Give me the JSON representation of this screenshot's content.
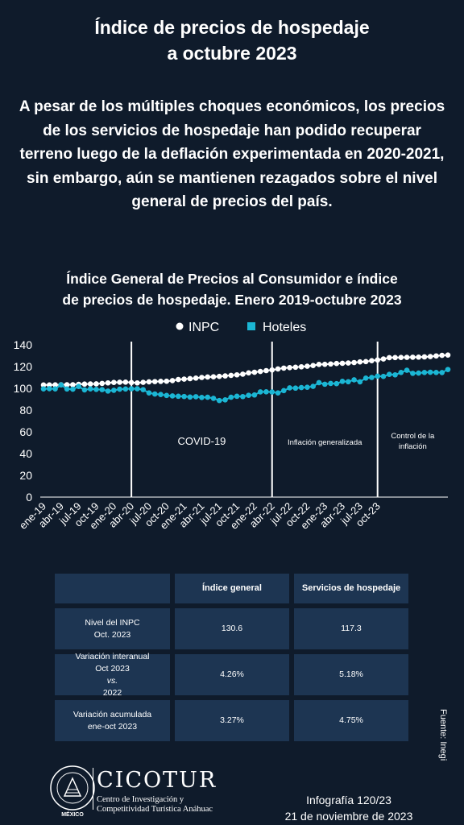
{
  "header": {
    "title_line1": "Índice de precios de hospedaje",
    "title_line2": "a octubre 2023",
    "intro": "A pesar de los múltiples choques económicos, los precios de los servicios de hospedaje han podido recuperar terreno luego de la deflación experimentada en 2020-2021, sin embargo, aún se mantienen rezagados sobre el nivel general de precios del país."
  },
  "chart_title_line1": "Índice General de Precios al Consumidor e índice",
  "chart_title_line2": "de precios de hospedaje. Enero 2019-octubre 2023",
  "chart_data": {
    "type": "line",
    "x_tick_labels": [
      "ene-19",
      "abr-19",
      "jul-19",
      "oct-19",
      "ene-20",
      "abr-20",
      "jul-20",
      "oct-20",
      "ene-21",
      "abr-21",
      "jul-21",
      "oct-21",
      "ene-22",
      "abr-22",
      "jul-22",
      "oct-22",
      "ene-23",
      "abr-23",
      "jul-23",
      "oct-23"
    ],
    "ylim": [
      0,
      140
    ],
    "y_ticks": [
      0,
      20,
      40,
      60,
      80,
      100,
      120,
      140
    ],
    "legend_position": "top",
    "series": [
      {
        "name": "INPC",
        "color": "#ffffff",
        "values": [
          103.1,
          103.1,
          103.2,
          103.3,
          103.3,
          103.3,
          103.7,
          103.9,
          104.0,
          104.1,
          104.5,
          105.0,
          105.4,
          105.6,
          105.7,
          105.3,
          105.0,
          105.5,
          106.0,
          106.2,
          106.4,
          106.5,
          107.1,
          108.1,
          108.5,
          108.9,
          109.4,
          110.0,
          110.4,
          110.6,
          111.0,
          111.4,
          111.9,
          112.4,
          113.0,
          114.2,
          114.8,
          115.5,
          116.3,
          116.9,
          117.8,
          118.6,
          119.0,
          119.4,
          119.8,
          120.3,
          121.0,
          122.0,
          122.1,
          122.4,
          122.8,
          123.0,
          123.3,
          123.7,
          124.3,
          124.6,
          125.4,
          126.1,
          127.0,
          128.2,
          128.3,
          128.4,
          128.5,
          128.6,
          128.7,
          128.9,
          129.2,
          129.8,
          130.3,
          130.6
        ]
      },
      {
        "name": "Hoteles",
        "color": "#1bb6d4",
        "values": [
          99.5,
          99.7,
          99.5,
          103.2,
          99.4,
          99.2,
          101.7,
          98.6,
          99.5,
          99.0,
          98.8,
          97.5,
          98.2,
          99.2,
          99.4,
          99.6,
          99.6,
          98.8,
          95.8,
          94.8,
          94.3,
          93.5,
          93.0,
          92.7,
          92.5,
          92.0,
          92.3,
          91.6,
          91.8,
          90.8,
          88.8,
          89.4,
          91.8,
          92.7,
          92.4,
          93.6,
          93.9,
          96.7,
          96.8,
          96.6,
          95.8,
          97.9,
          100.4,
          100.2,
          100.7,
          101.0,
          101.8,
          105.2,
          103.8,
          104.5,
          104.3,
          106.4,
          106.1,
          107.8,
          106.0,
          109.4,
          110.0,
          111.2,
          111.0,
          112.8,
          112.4,
          114.6,
          116.6,
          113.8,
          114.0,
          114.6,
          114.8,
          114.6,
          114.5,
          117.3
        ]
      }
    ],
    "annotations": [
      "COVID-19",
      "Inflación generalizada",
      "Control de la",
      "inflación"
    ]
  },
  "table": {
    "headers": [
      "",
      "Índice general",
      "Servicios de hospedaje"
    ],
    "rows": [
      {
        "label1": "Nivel del INPC",
        "label2": "Oct. 2023",
        "general": "130.6",
        "hospedaje": "117.3"
      },
      {
        "label1": "Variación interanual",
        "label2_a": "Oct 2023 ",
        "label2_em": "vs.",
        "label2_b": " 2022",
        "general": "4.26%",
        "hospedaje": "5.18%"
      },
      {
        "label1": "Variación acumulada",
        "label2": "ene-oct 2023",
        "general": "3.27%",
        "hospedaje": "4.75%"
      }
    ]
  },
  "source": "Fuente: Inegi",
  "footer": {
    "brand": "CICOTUR",
    "brand_sub1": "Centro de Investigación y",
    "brand_sub2": "Competitividad Turística Anáhuac",
    "mexico": "MÉXICO",
    "info_line1": "Infografía 120/23",
    "info_line2": "21 de noviembre de 2023"
  }
}
